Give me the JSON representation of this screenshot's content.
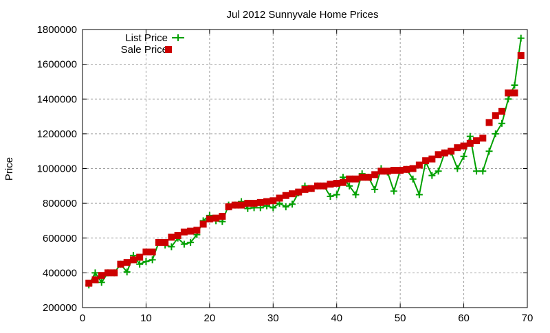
{
  "chart_data": {
    "type": "line",
    "title": "Jul 2012 Sunnyvale Home Prices",
    "xlabel": "",
    "ylabel": "Price",
    "xlim": [
      0,
      70
    ],
    "ylim": [
      200000,
      1800000
    ],
    "xticks": [
      0,
      10,
      20,
      30,
      40,
      50,
      60,
      70
    ],
    "yticks": [
      200000,
      400000,
      600000,
      800000,
      1000000,
      1200000,
      1400000,
      1600000,
      1800000
    ],
    "grid": true,
    "legend_position": "top-left",
    "x": [
      1,
      2,
      3,
      4,
      5,
      6,
      7,
      8,
      9,
      10,
      11,
      12,
      13,
      14,
      15,
      16,
      17,
      18,
      19,
      20,
      21,
      22,
      23,
      24,
      25,
      26,
      27,
      28,
      29,
      30,
      31,
      32,
      33,
      34,
      35,
      36,
      37,
      38,
      39,
      40,
      41,
      42,
      43,
      44,
      45,
      46,
      47,
      48,
      49,
      50,
      51,
      52,
      53,
      54,
      55,
      56,
      57,
      58,
      59,
      60,
      61,
      62,
      63,
      64,
      65,
      66,
      67,
      68,
      69
    ],
    "series": [
      {
        "name": "List Price",
        "style": "linespoints",
        "marker": "plus",
        "color": "#00a000",
        "values": [
          330000,
          400000,
          345000,
          400000,
          400000,
          450000,
          405000,
          500000,
          450000,
          465000,
          475000,
          575000,
          560000,
          550000,
          600000,
          565000,
          575000,
          620000,
          700000,
          730000,
          700000,
          695000,
          790000,
          790000,
          810000,
          770000,
          775000,
          775000,
          785000,
          775000,
          800000,
          780000,
          795000,
          860000,
          900000,
          885000,
          900000,
          900000,
          840000,
          850000,
          950000,
          900000,
          850000,
          970000,
          950000,
          880000,
          1000000,
          980000,
          870000,
          990000,
          995000,
          940000,
          850000,
          1040000,
          960000,
          985000,
          1090000,
          1095000,
          1000000,
          1070000,
          1185000,
          985000,
          985000,
          1100000,
          1200000,
          1260000,
          1400000,
          1480000,
          1750000
        ]
      },
      {
        "name": "Sale Price",
        "style": "points",
        "marker": "square",
        "color": "#cc0000",
        "values": [
          340000,
          360000,
          385000,
          400000,
          400000,
          450000,
          460000,
          475000,
          490000,
          520000,
          520000,
          575000,
          575000,
          605000,
          615000,
          635000,
          640000,
          645000,
          680000,
          710000,
          715000,
          725000,
          780000,
          790000,
          790000,
          800000,
          800000,
          805000,
          810000,
          815000,
          830000,
          845000,
          855000,
          865000,
          880000,
          885000,
          900000,
          900000,
          910000,
          915000,
          920000,
          940000,
          940000,
          950000,
          950000,
          965000,
          985000,
          985000,
          990000,
          990000,
          995000,
          1000000,
          1020000,
          1045000,
          1055000,
          1080000,
          1090000,
          1100000,
          1120000,
          1130000,
          1145000,
          1160000,
          1175000,
          1265000,
          1305000,
          1330000,
          1435000,
          1435000,
          1650000
        ]
      }
    ]
  }
}
